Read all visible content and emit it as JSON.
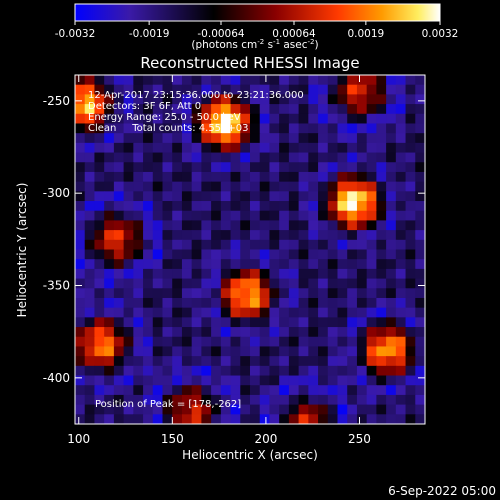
{
  "colorbar": {
    "tick_labels": [
      "-0.0032",
      "-0.0019",
      "-0.00064",
      "0.00064",
      "0.0019",
      "0.0032"
    ],
    "tick_values": [
      -0.0032,
      -0.0019,
      -0.00064,
      0.00064,
      0.0019,
      0.0032
    ],
    "range": [
      -0.0032,
      0.0032
    ],
    "units_prefix": "(photons cm",
    "units_exp1": "-2",
    "units_mid1": " s",
    "units_exp2": "-1",
    "units_mid2": " asec",
    "units_exp3": "-2",
    "units_suffix": ")",
    "colors": [
      "#0000ff",
      "#3a1aa8",
      "#000000",
      "#8a0000",
      "#ff3a00",
      "#ff9a00",
      "#ffee60",
      "#ffffff"
    ]
  },
  "footer_date": "6-Sep-2022 05:00",
  "chart_data": {
    "type": "heatmap",
    "title": "Reconstructed RHESSI Image",
    "xlabel": "Heliocentric X (arcsec)",
    "ylabel": "Heliocentric Y (arcsec)",
    "xlim": [
      98,
      285
    ],
    "ylim": [
      -425,
      -236
    ],
    "x_ticks": [
      100,
      150,
      200,
      250
    ],
    "x_tick_labels": [
      "100",
      "150",
      "200",
      "250"
    ],
    "y_ticks": [
      -250,
      -300,
      -350,
      -400
    ],
    "y_tick_labels": [
      "-250",
      "-300",
      "-350",
      "-400"
    ],
    "annotations": [
      "12-Apr-2017 23:15:36.000 to 23:21:36.000",
      "Detectors: 3F 6F, Att 0",
      "Energy Range: 25.0 - 50.0 keV",
      "Clean     Total counts: 4.55E+03"
    ],
    "peak_label": "Position of Peak = [178,-262]",
    "peak": [
      178,
      -262
    ],
    "sources": [
      {
        "x": 178,
        "y": -262,
        "value": 0.0032
      },
      {
        "x": 247,
        "y": -305,
        "value": 0.003
      },
      {
        "x": 103,
        "y": -252,
        "value": 0.0024
      },
      {
        "x": 190,
        "y": -355,
        "value": 0.0022
      },
      {
        "x": 112,
        "y": -382,
        "value": 0.0018
      },
      {
        "x": 265,
        "y": -385,
        "value": 0.0021
      },
      {
        "x": 120,
        "y": -325,
        "value": 0.001
      },
      {
        "x": 250,
        "y": -245,
        "value": 0.0009
      },
      {
        "x": 160,
        "y": -418,
        "value": 0.0008
      },
      {
        "x": 222,
        "y": -425,
        "value": 0.0007
      }
    ]
  }
}
